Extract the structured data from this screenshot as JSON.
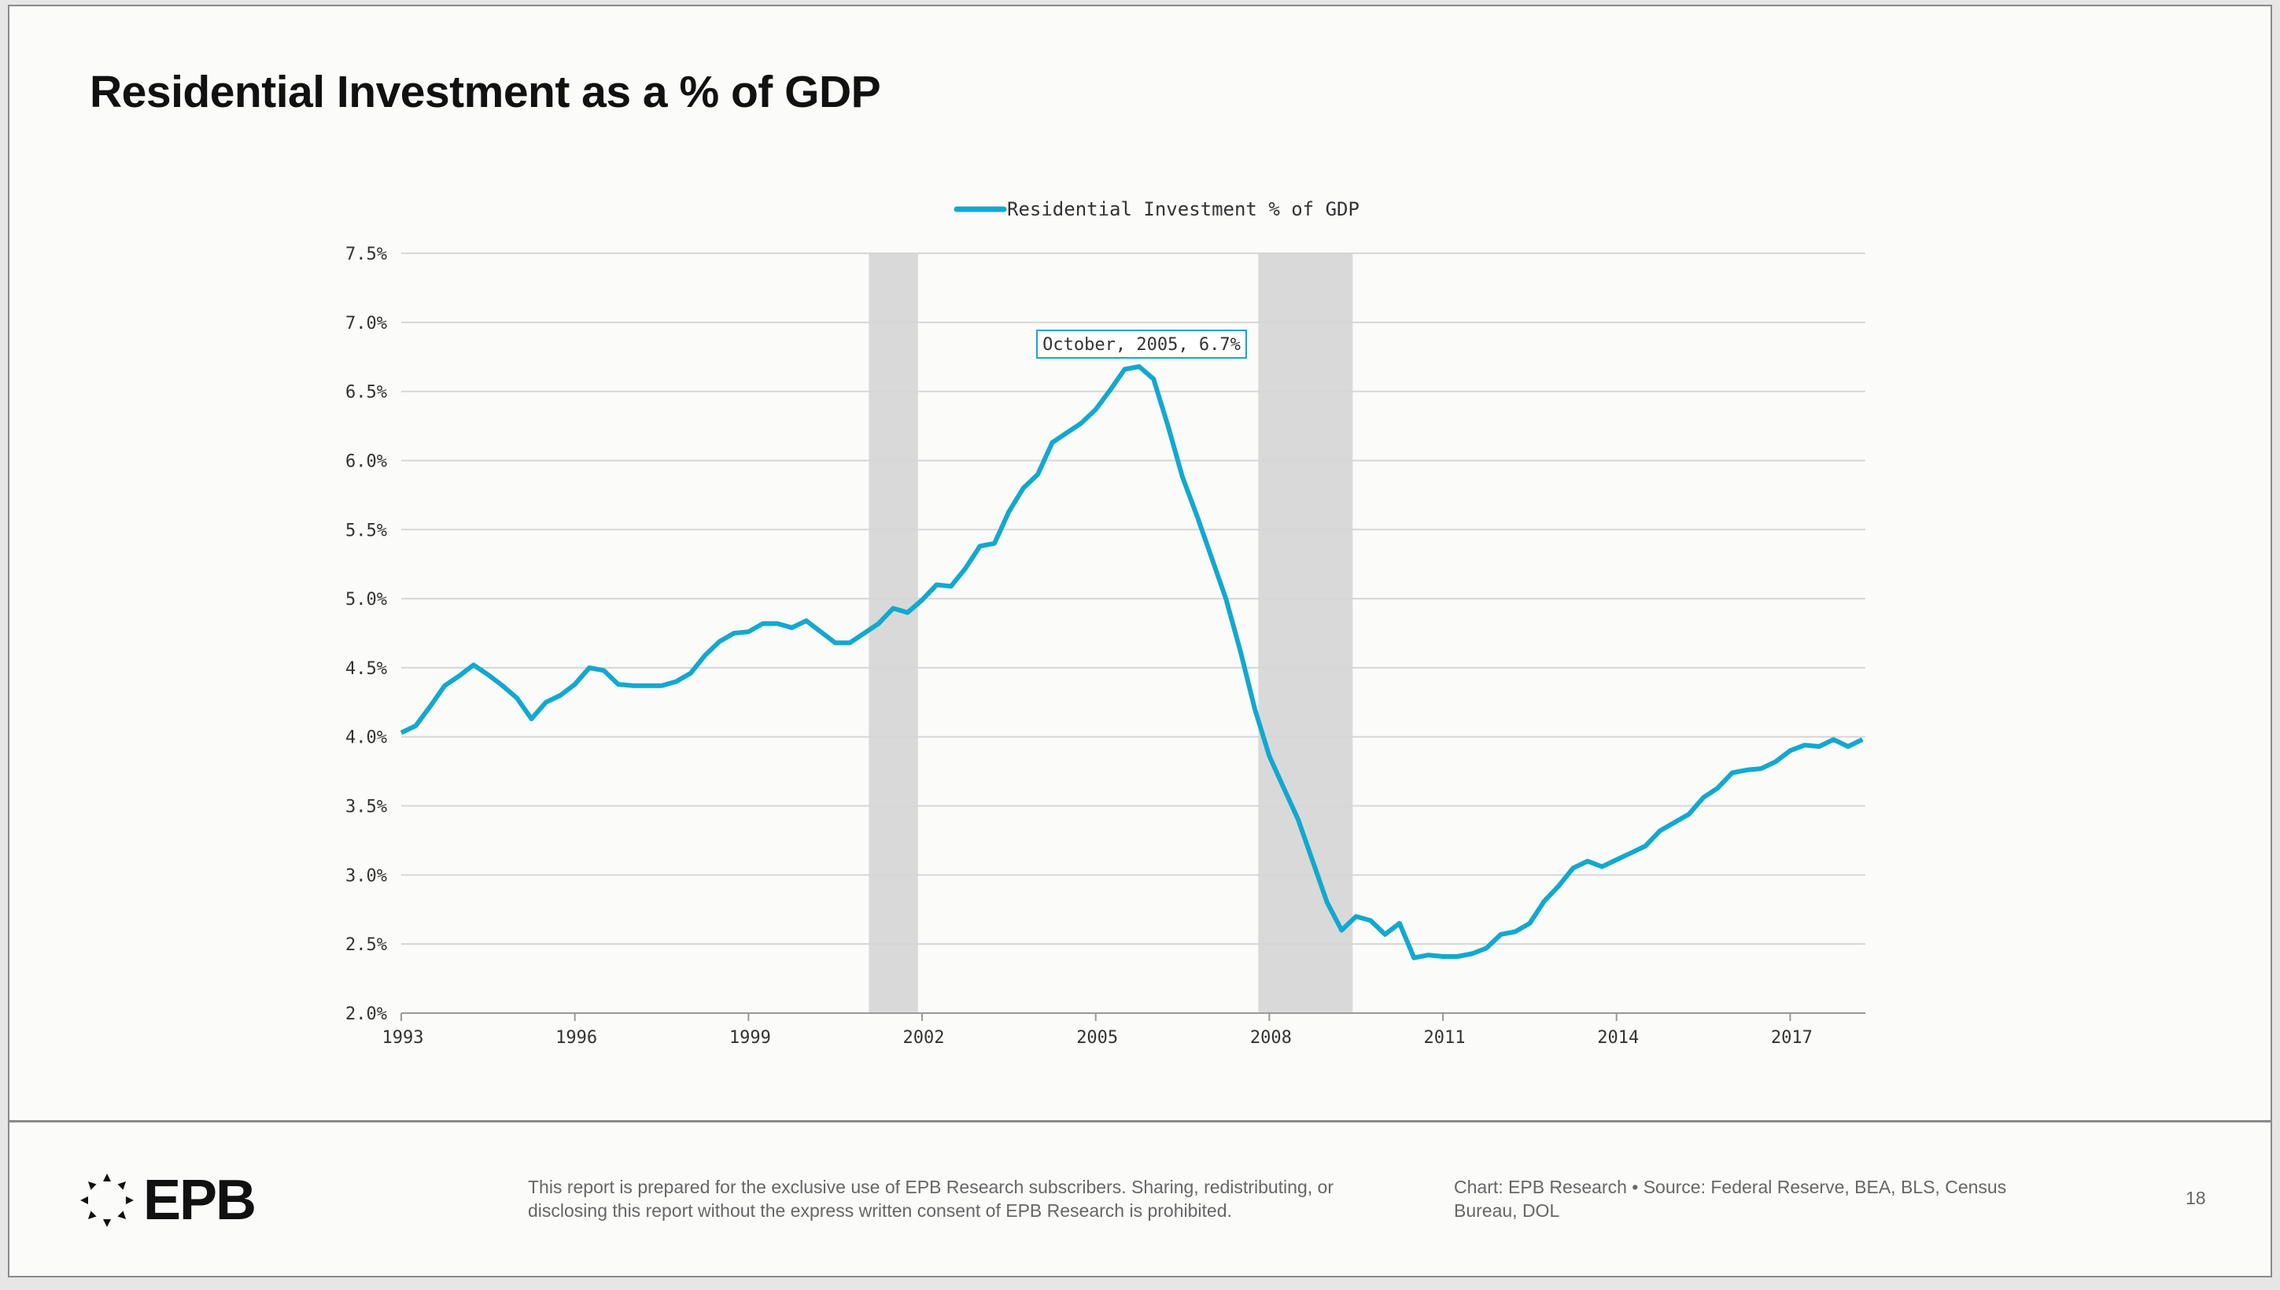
{
  "title": "Residential Investment as a % of GDP",
  "footer": {
    "logo_text": "EPB",
    "disclaimer": "This report is prepared for the exclusive use of EPB Research subscribers. Sharing, redistributing, or disclosing this report without the express written consent of EPB Research is prohibited.",
    "source": "Chart: EPB Research  •  Source: Federal Reserve, BEA, BLS, Census Bureau, DOL",
    "page_number": "18"
  },
  "colors": {
    "line": "#13a8cf",
    "recession": "#d9d9d9",
    "grid": "#d6d6d6"
  },
  "chart_data": {
    "type": "line",
    "title": "",
    "legend": [
      "Residential Investment % of GDP"
    ],
    "legend_position": "top-center",
    "xlabel": "",
    "ylabel": "",
    "xlim": [
      1993,
      2018.3
    ],
    "ylim": [
      2.0,
      7.5
    ],
    "x_ticks": [
      "1993",
      "1996",
      "1999",
      "2002",
      "2005",
      "2008",
      "2011",
      "2014",
      "2017"
    ],
    "y_ticks": [
      "2.0%",
      "2.5%",
      "3.0%",
      "3.5%",
      "4.0%",
      "4.5%",
      "5.0%",
      "5.5%",
      "6.0%",
      "6.5%",
      "7.0%",
      "7.5%"
    ],
    "grid": true,
    "x_start": 1993,
    "x_step": 0.25,
    "series": [
      {
        "name": "Residential Investment % of GDP",
        "values": [
          4.03,
          4.08,
          4.22,
          4.37,
          4.44,
          4.52,
          4.45,
          4.37,
          4.28,
          4.13,
          4.25,
          4.3,
          4.38,
          4.5,
          4.48,
          4.38,
          4.37,
          4.37,
          4.37,
          4.4,
          4.46,
          4.59,
          4.69,
          4.75,
          4.76,
          4.82,
          4.82,
          4.79,
          4.84,
          4.76,
          4.68,
          4.68,
          4.75,
          4.82,
          4.93,
          4.9,
          4.99,
          5.1,
          5.09,
          5.22,
          5.38,
          5.4,
          5.63,
          5.8,
          5.9,
          6.13,
          6.2,
          6.27,
          6.37,
          6.51,
          6.66,
          6.68,
          6.59,
          6.25,
          5.88,
          5.6,
          5.3,
          5.0,
          4.62,
          4.2,
          3.86,
          3.63,
          3.4,
          3.1,
          2.8,
          2.6,
          2.7,
          2.67,
          2.57,
          2.65,
          2.4,
          2.42,
          2.41,
          2.41,
          2.43,
          2.47,
          2.57,
          2.59,
          2.65,
          2.81,
          2.92,
          3.05,
          3.1,
          3.06,
          3.11,
          3.16,
          3.21,
          3.32,
          3.38,
          3.44,
          3.56,
          3.63,
          3.74,
          3.76,
          3.77,
          3.82,
          3.9,
          3.94,
          3.93,
          3.98,
          3.93,
          3.98
        ]
      }
    ],
    "recessions": [
      [
        2001.08,
        2001.93
      ],
      [
        2007.81,
        2009.44
      ]
    ],
    "annotation": {
      "text": "October, 2005, 6.7%",
      "x": 2005.75,
      "y": 6.7
    }
  }
}
